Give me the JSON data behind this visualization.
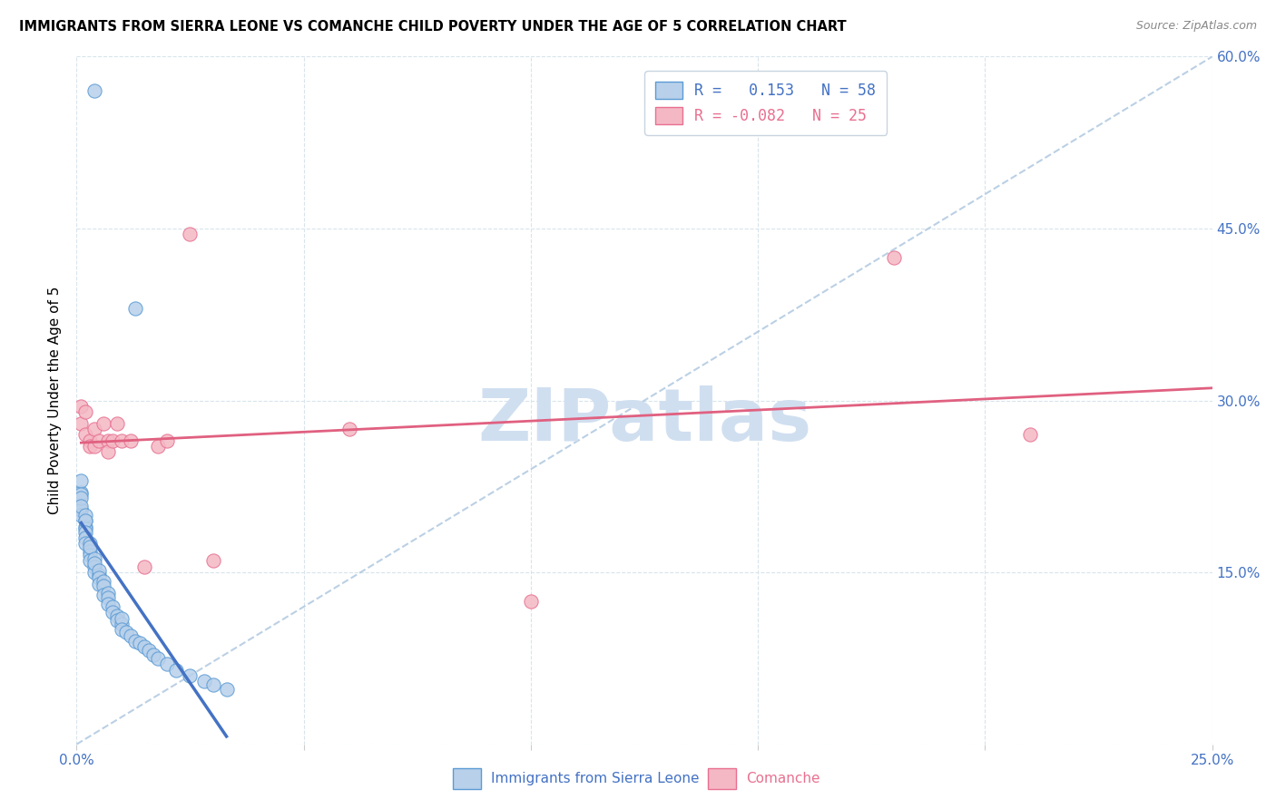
{
  "title": "IMMIGRANTS FROM SIERRA LEONE VS COMANCHE CHILD POVERTY UNDER THE AGE OF 5 CORRELATION CHART",
  "source": "Source: ZipAtlas.com",
  "ylabel": "Child Poverty Under the Age of 5",
  "x_min": 0.0,
  "x_max": 0.25,
  "y_min": 0.0,
  "y_max": 0.6,
  "x_ticks": [
    0.0,
    0.05,
    0.1,
    0.15,
    0.2,
    0.25
  ],
  "y_ticks": [
    0.0,
    0.15,
    0.3,
    0.45,
    0.6
  ],
  "color_sierra_fill": "#b8d0ea",
  "color_sierra_edge": "#5b9bd5",
  "color_comanche_fill": "#f4b8c4",
  "color_comanche_edge": "#e87090",
  "color_sierra_trendline": "#4472c4",
  "color_comanche_trendline": "#e06080",
  "color_ref_dashed": "#b0c8e0",
  "color_grid": "#d8e4ec",
  "color_tick_label": "#4472c4",
  "watermark_color": "#d0dff0",
  "sierra_leone_x": [
    0.004,
    0.001,
    0.001,
    0.001,
    0.001,
    0.001,
    0.001,
    0.001,
    0.001,
    0.002,
    0.002,
    0.002,
    0.002,
    0.002,
    0.002,
    0.002,
    0.002,
    0.003,
    0.003,
    0.003,
    0.003,
    0.003,
    0.004,
    0.004,
    0.004,
    0.004,
    0.005,
    0.005,
    0.005,
    0.005,
    0.006,
    0.006,
    0.006,
    0.007,
    0.007,
    0.007,
    0.008,
    0.008,
    0.009,
    0.009,
    0.01,
    0.01,
    0.01,
    0.011,
    0.012,
    0.013,
    0.014,
    0.015,
    0.016,
    0.017,
    0.018,
    0.02,
    0.022,
    0.025,
    0.028,
    0.03,
    0.033,
    0.013
  ],
  "sierra_leone_y": [
    0.57,
    0.205,
    0.22,
    0.23,
    0.205,
    0.218,
    0.215,
    0.2,
    0.208,
    0.195,
    0.19,
    0.2,
    0.188,
    0.195,
    0.185,
    0.18,
    0.175,
    0.175,
    0.168,
    0.165,
    0.172,
    0.16,
    0.162,
    0.155,
    0.15,
    0.158,
    0.148,
    0.152,
    0.145,
    0.14,
    0.142,
    0.138,
    0.13,
    0.132,
    0.128,
    0.122,
    0.12,
    0.115,
    0.112,
    0.108,
    0.105,
    0.11,
    0.1,
    0.098,
    0.095,
    0.09,
    0.088,
    0.085,
    0.082,
    0.078,
    0.075,
    0.07,
    0.065,
    0.06,
    0.055,
    0.052,
    0.048,
    0.38
  ],
  "comanche_x": [
    0.001,
    0.001,
    0.002,
    0.002,
    0.003,
    0.003,
    0.004,
    0.004,
    0.005,
    0.006,
    0.007,
    0.007,
    0.008,
    0.009,
    0.01,
    0.012,
    0.015,
    0.018,
    0.02,
    0.025,
    0.03,
    0.06,
    0.1,
    0.18,
    0.21
  ],
  "comanche_y": [
    0.295,
    0.28,
    0.29,
    0.27,
    0.265,
    0.26,
    0.275,
    0.26,
    0.265,
    0.28,
    0.265,
    0.255,
    0.265,
    0.28,
    0.265,
    0.265,
    0.155,
    0.26,
    0.265,
    0.445,
    0.16,
    0.275,
    0.125,
    0.425,
    0.27
  ],
  "ref_line_x": [
    0.0,
    0.25
  ],
  "ref_line_y": [
    0.0,
    0.6
  ],
  "legend_text1": "R =   0.153   N = 58",
  "legend_text2": "R = -0.082   N = 25",
  "bottom_label1": "Immigrants from Sierra Leone",
  "bottom_label2": "Comanche"
}
